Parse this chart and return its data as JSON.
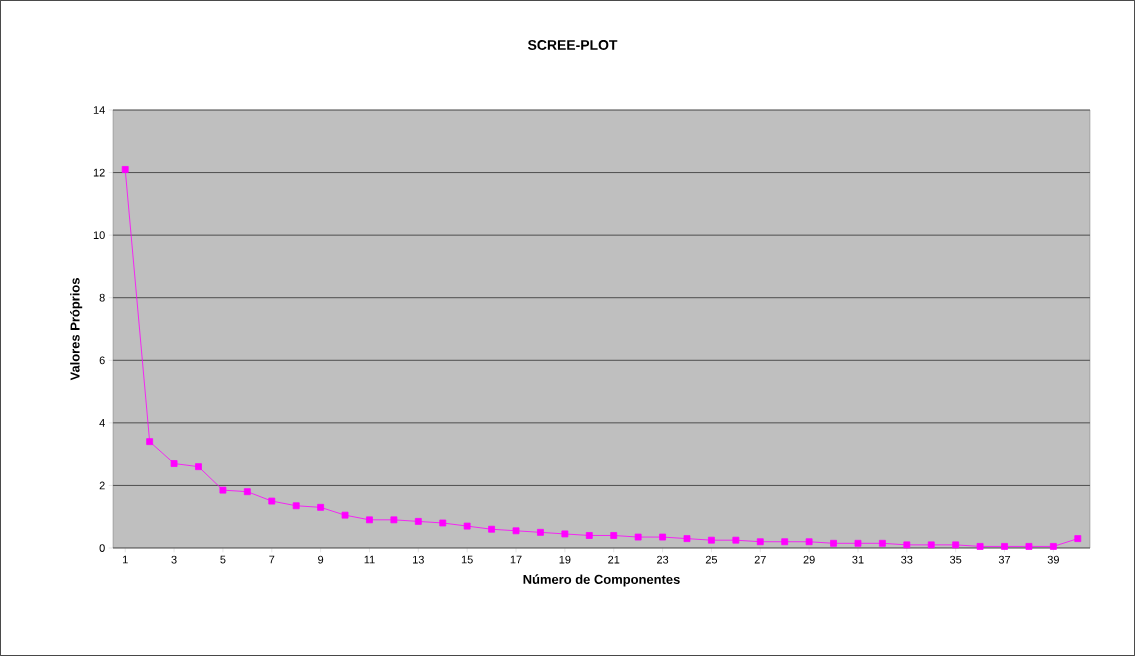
{
  "chart_data": {
    "type": "line",
    "title": "SCREE-PLOT",
    "xlabel": "Número de Componentes",
    "ylabel": "Valores Próprios",
    "categories": [
      "1",
      null,
      "3",
      null,
      "5",
      null,
      "7",
      null,
      "9",
      null,
      "11",
      null,
      "13",
      null,
      "15",
      null,
      "17",
      null,
      "19",
      null,
      "21",
      null,
      "23",
      null,
      "25",
      null,
      "27",
      null,
      "29",
      null,
      "31",
      null,
      "33",
      null,
      "35",
      null,
      "37",
      null,
      "39",
      null
    ],
    "series": [
      {
        "color": "#ff00ff",
        "values": [
          12.1,
          3.4,
          2.7,
          2.6,
          1.85,
          1.8,
          1.5,
          1.35,
          1.3,
          1.05,
          0.9,
          0.9,
          0.85,
          0.8,
          0.7,
          0.6,
          0.55,
          0.5,
          0.45,
          0.4,
          0.4,
          0.35,
          0.35,
          0.3,
          0.25,
          0.25,
          0.2,
          0.2,
          0.2,
          0.15,
          0.15,
          0.15,
          0.1,
          0.1,
          0.1,
          0.05,
          0.05,
          0.05,
          0.05,
          0.3
        ]
      }
    ],
    "ylim": [
      0,
      14
    ],
    "yticks": [
      0,
      2,
      4,
      6,
      8,
      10,
      12,
      14
    ],
    "grid": "y",
    "marker": "square",
    "line_style": "solid"
  }
}
